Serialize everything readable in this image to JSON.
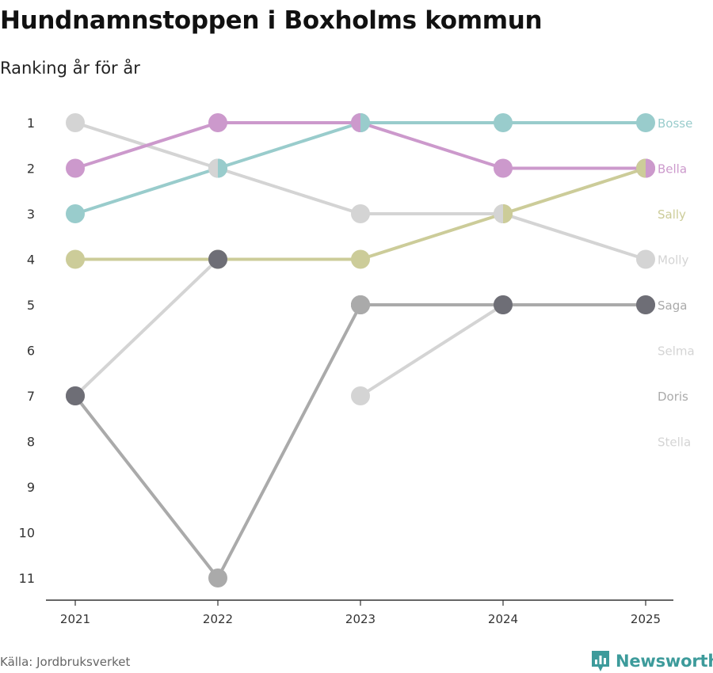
{
  "title": "Hundnamnstoppen i Boxholms kommun",
  "subtitle": "Ranking år för år",
  "source": "Källa: Jordbruksverket",
  "brand": "Newsworthy",
  "colors": {
    "brand": "#3d9b9b",
    "axis": "#333333",
    "tick_text": "#333333"
  },
  "chart_data": {
    "type": "line",
    "chart_kind": "bump",
    "x": [
      "2021",
      "2022",
      "2023",
      "2024",
      "2025"
    ],
    "y_ticks": [
      "1",
      "2",
      "3",
      "4",
      "5",
      "6",
      "7",
      "8",
      "9",
      "10",
      "11"
    ],
    "ylim": [
      1,
      11
    ],
    "y_inverted": true,
    "series": [
      {
        "name": "Stella",
        "color": "#d4d4d4",
        "values": [
          null,
          null,
          7,
          5,
          null
        ]
      },
      {
        "name": "Selma",
        "color": "#d4d4d4",
        "values": [
          7,
          4,
          null,
          null,
          null
        ]
      },
      {
        "name": "Doris",
        "color": "#aaaaaa",
        "values": [
          7,
          11,
          5,
          null,
          null
        ]
      },
      {
        "name": "Molly",
        "color": "#d4d4d4",
        "values": [
          1,
          2,
          3,
          3,
          4
        ]
      },
      {
        "name": "Saga",
        "color": "#aaaaaa",
        "values": [
          null,
          null,
          5,
          5,
          5
        ]
      },
      {
        "name": "Sally",
        "color": "#cccc99",
        "values": [
          4,
          4,
          4,
          3,
          2
        ]
      },
      {
        "name": "Bella",
        "color": "#cc99cc",
        "values": [
          2,
          1,
          1,
          2,
          2
        ]
      },
      {
        "name": "Bosse",
        "color": "#99cccc",
        "values": [
          3,
          2,
          1,
          1,
          1
        ]
      }
    ],
    "overlap_points": [
      {
        "x": "2021",
        "value": 7,
        "color": "#6e6e76"
      },
      {
        "x": "2022",
        "value": 4,
        "color": "#6e6e76"
      },
      {
        "x": "2024",
        "value": 5,
        "color": "#6e6e76"
      },
      {
        "x": "2025",
        "value": 5,
        "color": "#6e6e76"
      }
    ],
    "end_labels": [
      {
        "name": "Bosse",
        "value": 1,
        "color": "#99cccc"
      },
      {
        "name": "Bella",
        "value": 2,
        "color": "#cc99cc"
      },
      {
        "name": "Sally",
        "value": 3,
        "color": "#cccc99"
      },
      {
        "name": "Molly",
        "value": 4,
        "color": "#d4d4d4"
      },
      {
        "name": "Saga",
        "value": 5,
        "color": "#aaaaaa"
      },
      {
        "name": "Selma",
        "value": 6,
        "color": "#d4d4d4"
      },
      {
        "name": "Doris",
        "value": 7,
        "color": "#aaaaaa"
      },
      {
        "name": "Stella",
        "value": 8,
        "color": "#d4d4d4"
      }
    ]
  }
}
